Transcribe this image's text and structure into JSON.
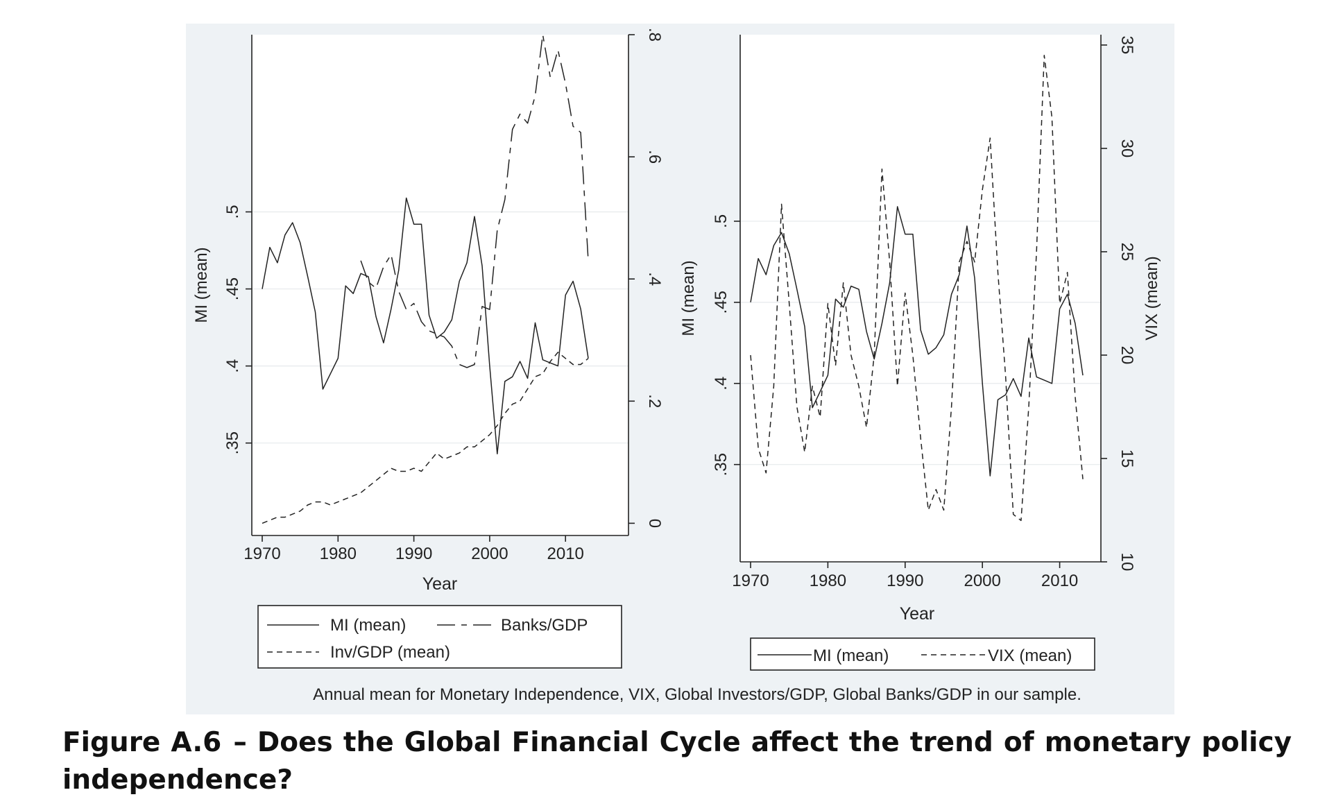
{
  "figure": {
    "label": "Figure A.6",
    "separator": "–",
    "title": "Does the Global Financial Cycle affect the trend of monetary policy independence?",
    "note": "Annual mean for Monetary Independence, VIX, Global Investors/GDP, Global Banks/GDP in our sample.",
    "panel_background": "#eef2f5"
  },
  "chart_data": [
    {
      "type": "line",
      "xlabel": "Year",
      "ylabel": "MI (mean)",
      "y2label": "",
      "xlim": [
        1970,
        2013
      ],
      "ylim": [
        0.29,
        0.615
      ],
      "y2lim": [
        -0.02,
        0.8
      ],
      "x_ticks": [
        "1970",
        "1980",
        "1990",
        "2000",
        "2010"
      ],
      "y_ticks": [
        ".35",
        ".4",
        ".45",
        ".5"
      ],
      "y2_ticks": [
        "0",
        ".2",
        ".4",
        ".6",
        ".8"
      ],
      "grid": true,
      "legend": {
        "placement": "bottom",
        "entries": [
          "MI (mean)",
          "Banks/GDP",
          "Inv/GDP (mean)"
        ]
      },
      "series": [
        {
          "name": "MI (mean)",
          "axis": "left",
          "style": "solid",
          "x": [
            1970,
            1971,
            1972,
            1973,
            1974,
            1975,
            1976,
            1977,
            1978,
            1979,
            1980,
            1981,
            1982,
            1983,
            1984,
            1985,
            1986,
            1987,
            1988,
            1989,
            1990,
            1991,
            1992,
            1993,
            1994,
            1995,
            1996,
            1997,
            1998,
            1999,
            2000,
            2001,
            2002,
            2003,
            2004,
            2005,
            2006,
            2007,
            2008,
            2009,
            2010,
            2011,
            2012,
            2013
          ],
          "values": [
            0.45,
            0.477,
            0.467,
            0.485,
            0.493,
            0.48,
            0.458,
            0.435,
            0.385,
            0.395,
            0.405,
            0.452,
            0.447,
            0.46,
            0.458,
            0.432,
            0.415,
            0.437,
            0.462,
            0.509,
            0.492,
            0.492,
            0.433,
            0.418,
            0.422,
            0.43,
            0.455,
            0.467,
            0.497,
            0.465,
            0.4,
            0.343,
            0.39,
            0.393,
            0.403,
            0.392,
            0.428,
            0.404,
            0.402,
            0.4,
            0.446,
            0.455,
            0.437,
            0.405
          ]
        },
        {
          "name": "Banks/GDP",
          "axis": "right",
          "style": "longdash",
          "x": [
            1983,
            1984,
            1985,
            1986,
            1987,
            1988,
            1989,
            1990,
            1991,
            1992,
            1993,
            1994,
            1995,
            1996,
            1997,
            1998,
            1999,
            2000,
            2001,
            2002,
            2003,
            2004,
            2005,
            2006,
            2007,
            2008,
            2009,
            2010,
            2011,
            2012,
            2013
          ],
          "values": [
            0.43,
            0.395,
            0.385,
            0.42,
            0.44,
            0.38,
            0.35,
            0.36,
            0.33,
            0.315,
            0.31,
            0.305,
            0.29,
            0.26,
            0.255,
            0.26,
            0.355,
            0.35,
            0.48,
            0.53,
            0.645,
            0.67,
            0.655,
            0.7,
            0.8,
            0.73,
            0.775,
            0.72,
            0.65,
            0.64,
            0.43
          ]
        },
        {
          "name": "Inv/GDP (mean)",
          "axis": "right",
          "style": "shortdash",
          "x": [
            1970,
            1971,
            1972,
            1973,
            1974,
            1975,
            1976,
            1977,
            1978,
            1979,
            1980,
            1981,
            1982,
            1983,
            1984,
            1985,
            1986,
            1987,
            1988,
            1989,
            1990,
            1991,
            1992,
            1993,
            1994,
            1995,
            1996,
            1997,
            1998,
            1999,
            2000,
            2001,
            2002,
            2003,
            2004,
            2005,
            2006,
            2007,
            2008,
            2009,
            2010,
            2011,
            2012,
            2013
          ],
          "values": [
            0.0,
            0.005,
            0.01,
            0.01,
            0.015,
            0.02,
            0.03,
            0.035,
            0.035,
            0.03,
            0.035,
            0.04,
            0.045,
            0.05,
            0.06,
            0.07,
            0.08,
            0.09,
            0.085,
            0.085,
            0.09,
            0.085,
            0.1,
            0.115,
            0.105,
            0.11,
            0.115,
            0.125,
            0.125,
            0.135,
            0.145,
            0.16,
            0.18,
            0.195,
            0.2,
            0.22,
            0.24,
            0.245,
            0.265,
            0.28,
            0.27,
            0.26,
            0.26,
            0.27
          ]
        }
      ]
    },
    {
      "type": "line",
      "xlabel": "Year",
      "ylabel": "MI (mean)",
      "y2label": "VIX (mean)",
      "xlim": [
        1970,
        2013
      ],
      "ylim": [
        0.29,
        0.615
      ],
      "y2lim": [
        10,
        35.5
      ],
      "x_ticks": [
        "1970",
        "1980",
        "1990",
        "2000",
        "2010"
      ],
      "y_ticks": [
        ".35",
        ".4",
        ".45",
        ".5"
      ],
      "y2_ticks": [
        "10",
        "15",
        "20",
        "25",
        "30",
        "35"
      ],
      "grid": true,
      "legend": {
        "placement": "bottom",
        "entries": [
          "MI (mean)",
          "VIX (mean)"
        ]
      },
      "series": [
        {
          "name": "MI (mean)",
          "axis": "left",
          "style": "solid",
          "x": [
            1970,
            1971,
            1972,
            1973,
            1974,
            1975,
            1976,
            1977,
            1978,
            1979,
            1980,
            1981,
            1982,
            1983,
            1984,
            1985,
            1986,
            1987,
            1988,
            1989,
            1990,
            1991,
            1992,
            1993,
            1994,
            1995,
            1996,
            1997,
            1998,
            1999,
            2000,
            2001,
            2002,
            2003,
            2004,
            2005,
            2006,
            2007,
            2008,
            2009,
            2010,
            2011,
            2012,
            2013
          ],
          "values": [
            0.45,
            0.477,
            0.467,
            0.485,
            0.493,
            0.48,
            0.458,
            0.435,
            0.385,
            0.395,
            0.405,
            0.452,
            0.447,
            0.46,
            0.458,
            0.432,
            0.415,
            0.437,
            0.462,
            0.509,
            0.492,
            0.492,
            0.433,
            0.418,
            0.422,
            0.43,
            0.455,
            0.467,
            0.497,
            0.465,
            0.4,
            0.343,
            0.39,
            0.393,
            0.403,
            0.392,
            0.428,
            0.404,
            0.402,
            0.4,
            0.446,
            0.455,
            0.437,
            0.405
          ]
        },
        {
          "name": "VIX (mean)",
          "axis": "right",
          "style": "shortdash",
          "x": [
            1970,
            1971,
            1972,
            1973,
            1974,
            1975,
            1976,
            1977,
            1978,
            1979,
            1980,
            1981,
            1982,
            1983,
            1984,
            1985,
            1986,
            1987,
            1988,
            1989,
            1990,
            1991,
            1992,
            1993,
            1994,
            1995,
            1996,
            1997,
            1998,
            1999,
            2000,
            2001,
            2002,
            2003,
            2004,
            2005,
            2006,
            2007,
            2008,
            2009,
            2010,
            2011,
            2012,
            2013
          ],
          "values": [
            20.0,
            15.5,
            14.3,
            18.5,
            27.3,
            22.5,
            17.5,
            15.3,
            18.5,
            17.0,
            22.5,
            19.5,
            23.5,
            20.0,
            18.5,
            16.5,
            20.0,
            29.0,
            24.5,
            18.5,
            23.0,
            20.0,
            16.0,
            12.5,
            13.5,
            12.5,
            17.5,
            24.5,
            25.5,
            24.5,
            28.0,
            30.5,
            24.0,
            19.0,
            12.3,
            12.0,
            17.5,
            25.0,
            34.5,
            31.5,
            22.5,
            24.0,
            18.0,
            14.0
          ]
        }
      ]
    }
  ]
}
